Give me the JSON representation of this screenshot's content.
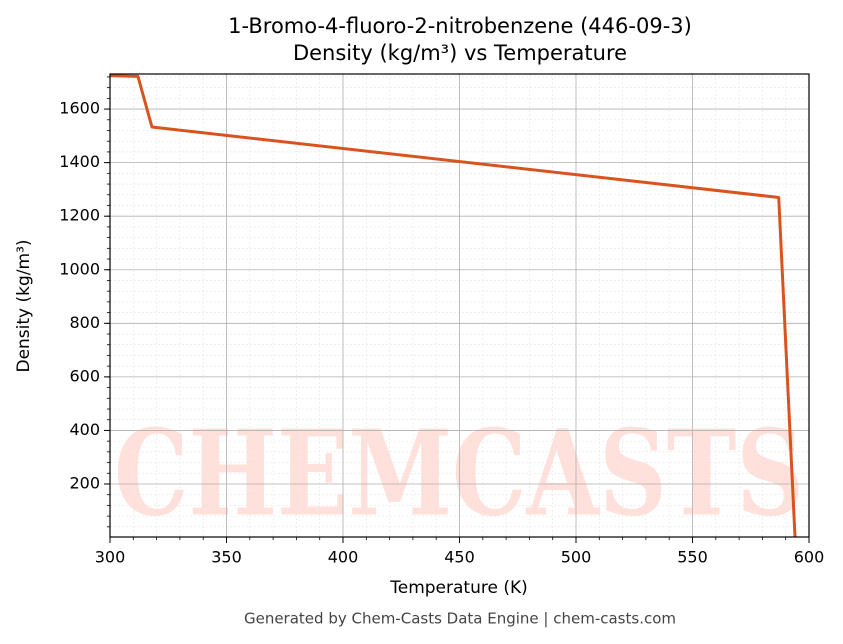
{
  "chart_data": {
    "type": "line",
    "title": "1-Bromo-4-fluoro-2-nitrobenzene (446-09-3)",
    "subtitle": "Density (kg/m³) vs Temperature",
    "x_label": "Temperature (K)",
    "y_label": "Density (kg/m³)",
    "footer": "Generated by Chem-Casts Data Engine | chem-casts.com",
    "watermark": "CHEMCASTS",
    "x": [
      300,
      312,
      318,
      587,
      594
    ],
    "series": [
      {
        "name": "Density",
        "color": "#d9531e",
        "values": [
          1725,
          1722,
          1533,
          1270,
          2
        ]
      }
    ],
    "xlim": [
      300,
      600
    ],
    "ylim": [
      2,
      1731
    ],
    "xticks": [
      300,
      350,
      400,
      450,
      500,
      550,
      600
    ],
    "yticks": [
      200,
      400,
      600,
      800,
      1000,
      1200,
      1400,
      1600
    ],
    "grid": true
  }
}
